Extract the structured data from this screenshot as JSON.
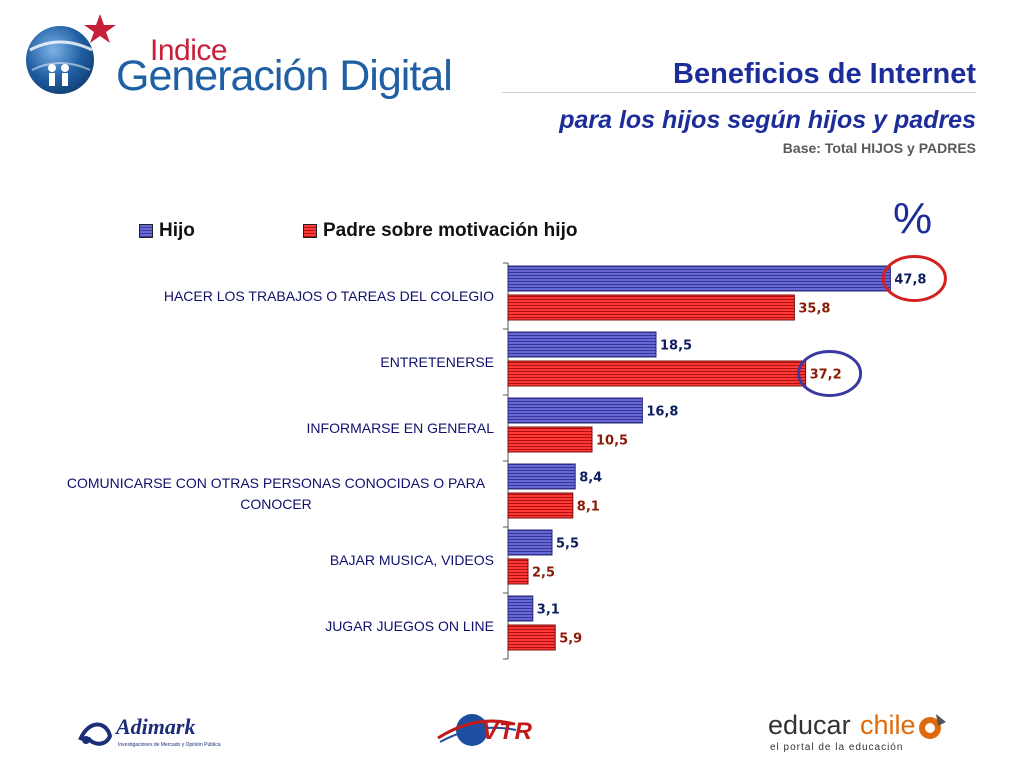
{
  "header": {
    "logo_top": "Indice",
    "logo_main": "Generación Digital",
    "title": "Beneficios de Internet",
    "subtitle": "para los hijos según hijos y padres",
    "base": "Base: Total HIJOS y PADRES",
    "unit": "%"
  },
  "chart_data": {
    "type": "bar",
    "orientation": "horizontal",
    "categories": [
      "HACER LOS TRABAJOS O TAREAS DEL COLEGIO",
      "ENTRETENERSE",
      "INFORMARSE EN GENERAL",
      "COMUNICARSE CON OTRAS PERSONAS CONOCIDAS O PARA CONOCER",
      "BAJAR MUSICA, VIDEOS",
      "JUGAR JUEGOS ON LINE"
    ],
    "category_lines": [
      [
        "HACER LOS TRABAJOS O TAREAS DEL COLEGIO"
      ],
      [
        "ENTRETENERSE"
      ],
      [
        "INFORMARSE EN GENERAL"
      ],
      [
        "COMUNICARSE CON OTRAS PERSONAS CONOCIDAS O PARA",
        "CONOCER"
      ],
      [
        "BAJAR MUSICA, VIDEOS"
      ],
      [
        "JUGAR JUEGOS ON LINE"
      ]
    ],
    "series": [
      {
        "name": "Hijo",
        "values": [
          47.8,
          18.5,
          16.8,
          8.4,
          5.5,
          3.1
        ],
        "labels": [
          "47,8",
          "18,5",
          "16,8",
          "8,4",
          "5,5",
          "3,1"
        ],
        "color": "#4b4bc0",
        "label_color": "#0d1f5c"
      },
      {
        "name": "Padre sobre motivación hijo",
        "values": [
          35.8,
          37.2,
          10.5,
          8.1,
          2.5,
          5.9
        ],
        "labels": [
          "35,8",
          "37,2",
          "10,5",
          "8,1",
          "2,5",
          "5,9"
        ],
        "color": "#e8241f",
        "label_color": "#8b1a06"
      }
    ],
    "xlim": [
      0,
      48
    ],
    "grid": false,
    "legend_placement": "top",
    "highlights": [
      {
        "series": 0,
        "category": 0,
        "color": "#d42020"
      },
      {
        "series": 1,
        "category": 1,
        "color": "#3a3aa0"
      }
    ]
  },
  "footer": {
    "adimark_name": "Adimark",
    "adimark_tagline": "Investigaciones de Mercado y Opinión Pública",
    "vtr_name": "VTR",
    "educar_name_1": "educar",
    "educar_name_2": "chile",
    "educar_tagline": "el portal de la educación"
  }
}
